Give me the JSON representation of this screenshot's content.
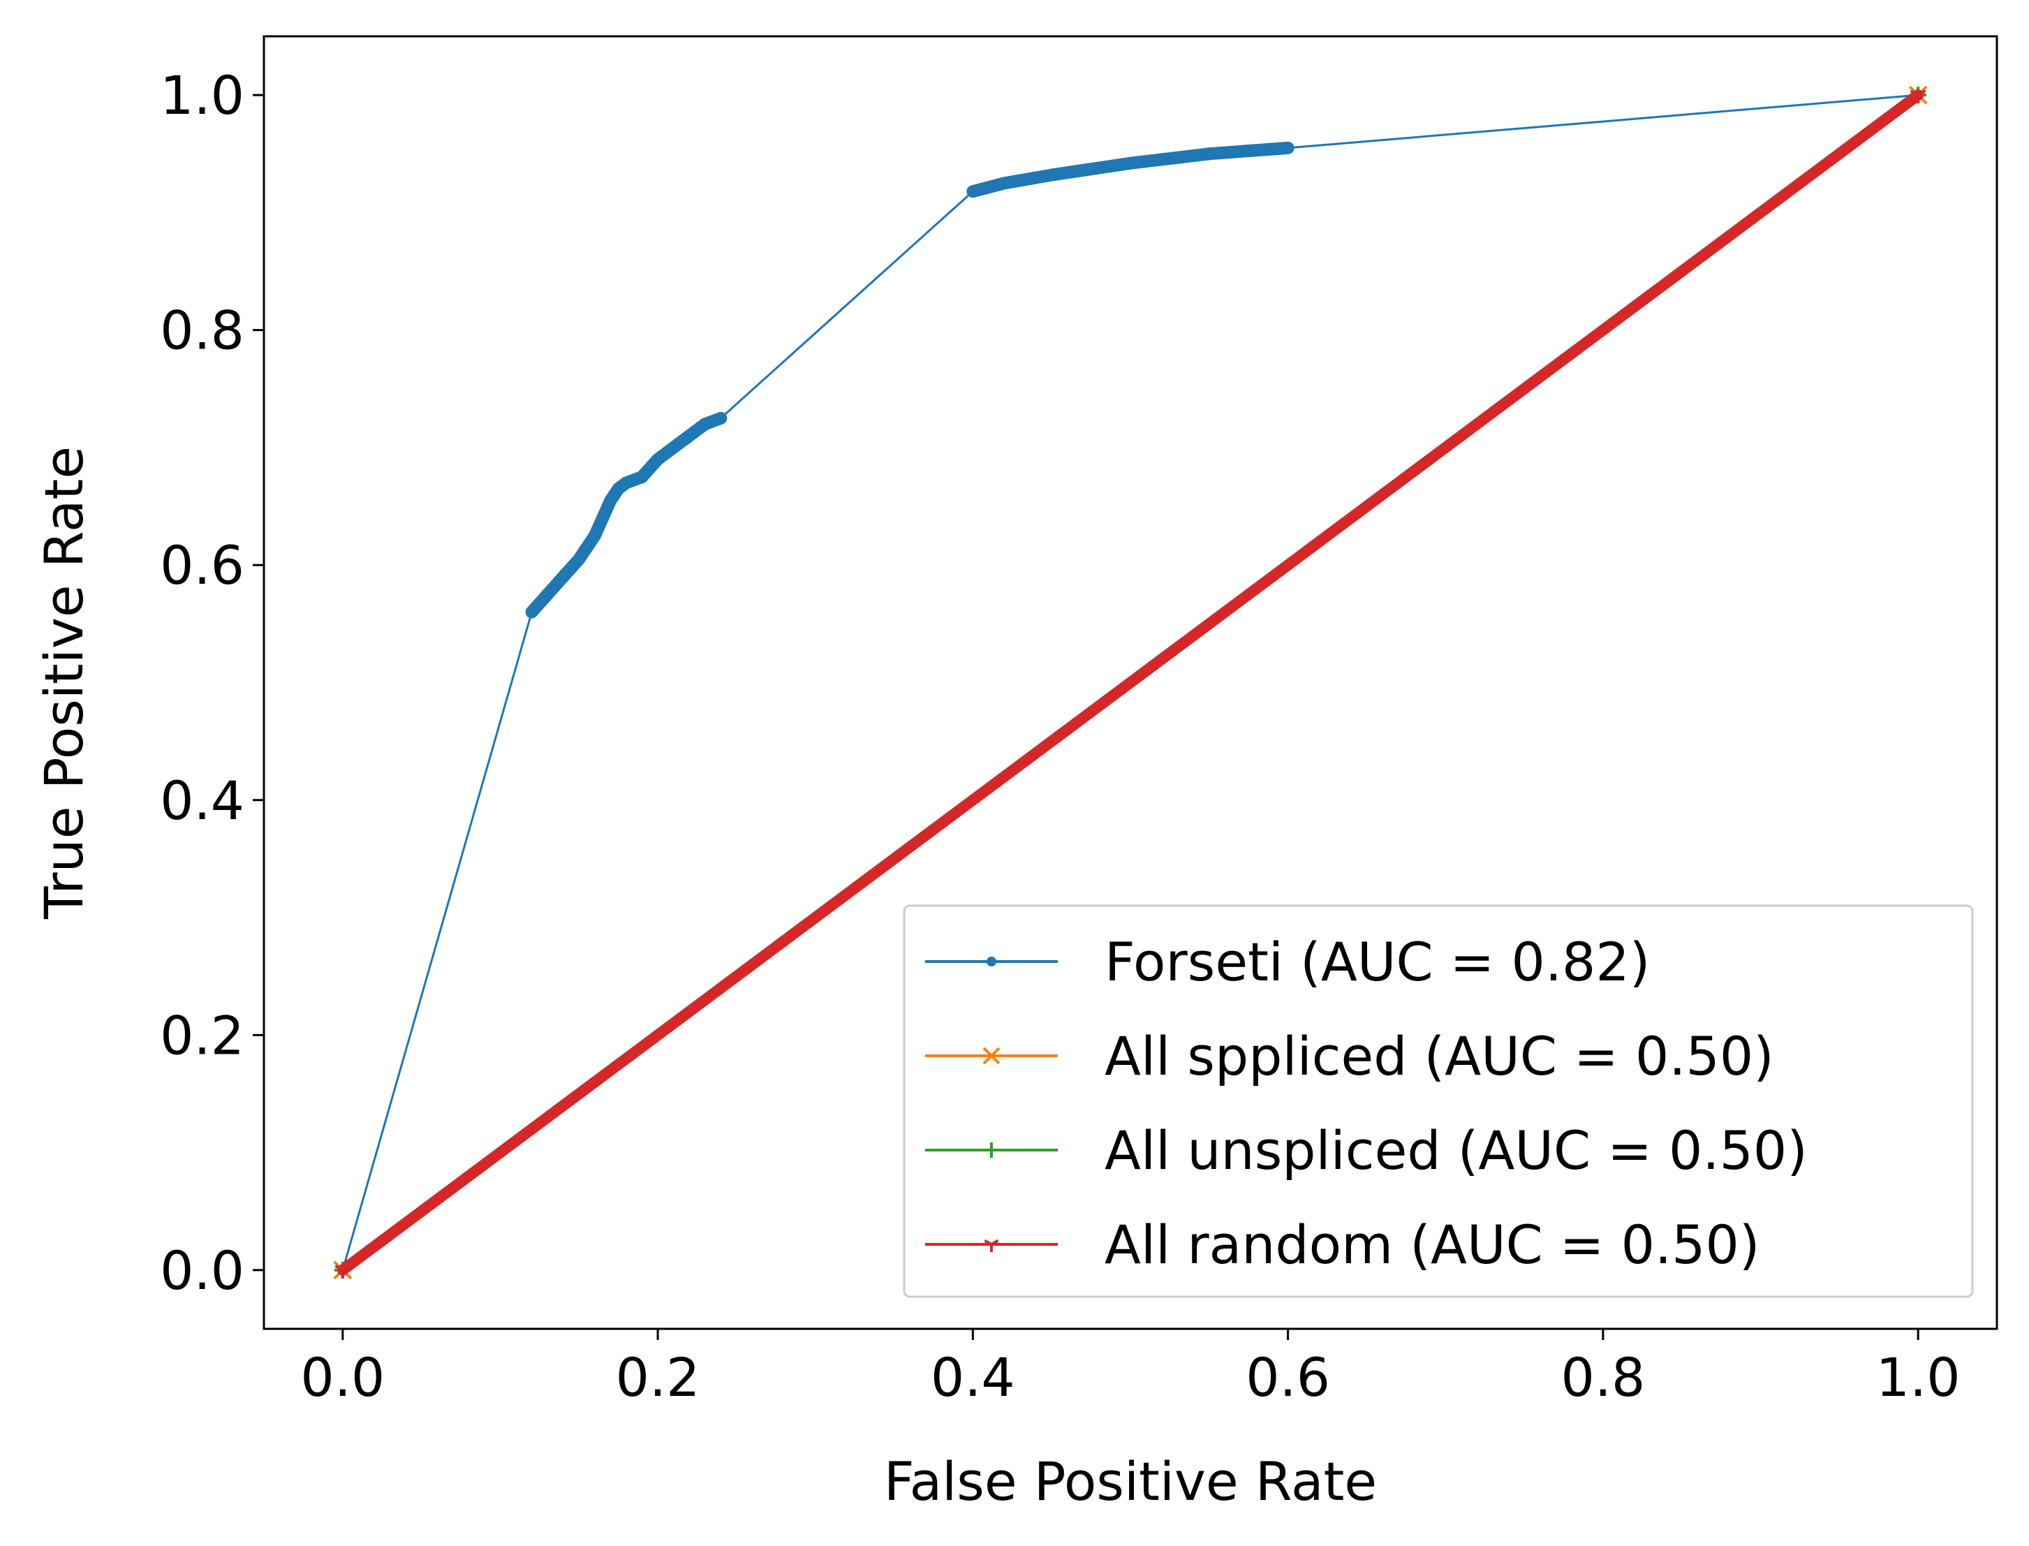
{
  "chart_data": {
    "type": "line",
    "title": "",
    "xlabel": "False Positive Rate",
    "ylabel": "True Positive Rate",
    "xlim": [
      -0.05,
      1.05
    ],
    "ylim": [
      -0.05,
      1.05
    ],
    "xticks": [
      "0.0",
      "0.2",
      "0.4",
      "0.6",
      "0.8",
      "1.0"
    ],
    "yticks": [
      "0.0",
      "0.2",
      "0.4",
      "0.6",
      "0.8",
      "1.0"
    ],
    "grid": false,
    "legend_position": "lower right",
    "series": [
      {
        "name": "Forseti (AUC = 0.82)",
        "color": "#1f77b4",
        "marker": "point",
        "x": [
          0.0,
          0.12,
          0.13,
          0.14,
          0.15,
          0.16,
          0.165,
          0.17,
          0.175,
          0.18,
          0.19,
          0.2,
          0.21,
          0.22,
          0.23,
          0.24,
          0.4,
          0.42,
          0.45,
          0.5,
          0.55,
          0.6,
          1.0
        ],
        "y": [
          0.0,
          0.56,
          0.575,
          0.59,
          0.605,
          0.625,
          0.64,
          0.655,
          0.665,
          0.67,
          0.675,
          0.69,
          0.7,
          0.71,
          0.72,
          0.725,
          0.918,
          0.925,
          0.932,
          0.942,
          0.95,
          0.955,
          1.0
        ]
      },
      {
        "name": "All sppliced (AUC = 0.50)",
        "color": "#ff7f0e",
        "marker": "x",
        "x": [
          0.0,
          1.0
        ],
        "y": [
          0.0,
          1.0
        ]
      },
      {
        "name": "All unspliced (AUC = 0.50)",
        "color": "#2ca02c",
        "marker": "+",
        "x": [
          0.0,
          1.0
        ],
        "y": [
          0.0,
          1.0
        ]
      },
      {
        "name": "All random (AUC = 0.50)",
        "color": "#d62728",
        "marker": "tri",
        "x": [
          0.0,
          1.0
        ],
        "y": [
          0.0,
          1.0
        ]
      }
    ]
  }
}
